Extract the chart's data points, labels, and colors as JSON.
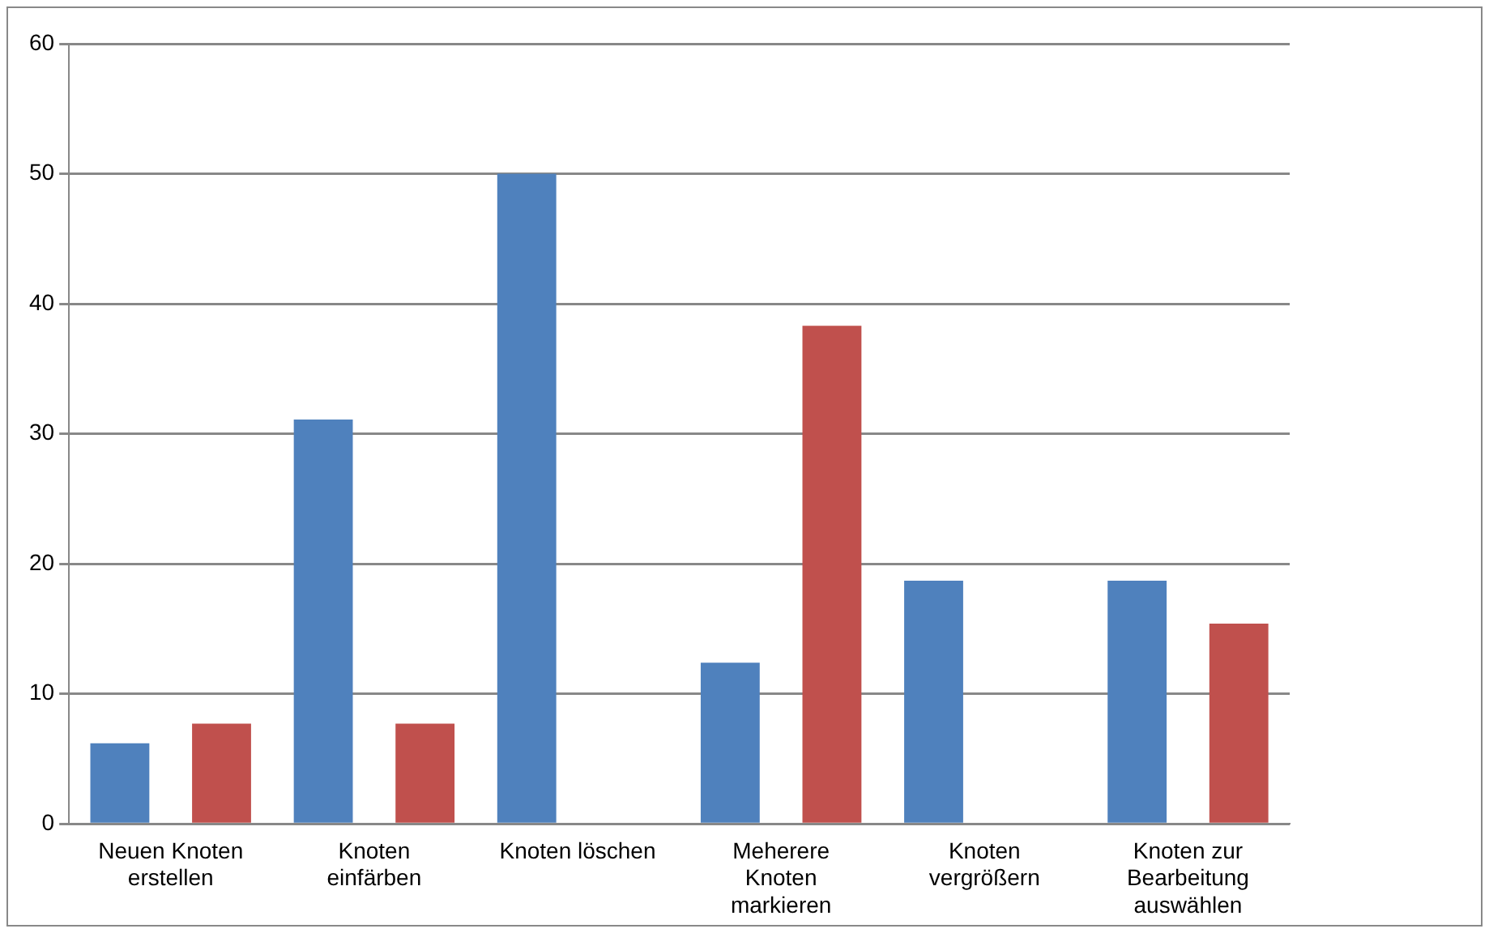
{
  "chart_data": {
    "type": "bar",
    "categories": [
      "Neuen Knoten erstellen",
      "Knoten einfärben",
      "Knoten löschen",
      "Meherere Knoten markieren",
      "Knoten vergrößern",
      "Knoten zur Bearbeitung auswählen"
    ],
    "series": [
      {
        "color": "#4f81bd",
        "values": [
          6.2,
          31.1,
          50,
          12.4,
          18.7,
          18.7
        ]
      },
      {
        "color": "#c0504d",
        "values": [
          7.7,
          7.7,
          0,
          38.3,
          0,
          15.4
        ]
      }
    ],
    "ylim": [
      0,
      60
    ],
    "yticks": [
      0,
      10,
      20,
      30,
      40,
      50,
      60
    ],
    "grid": "y"
  }
}
